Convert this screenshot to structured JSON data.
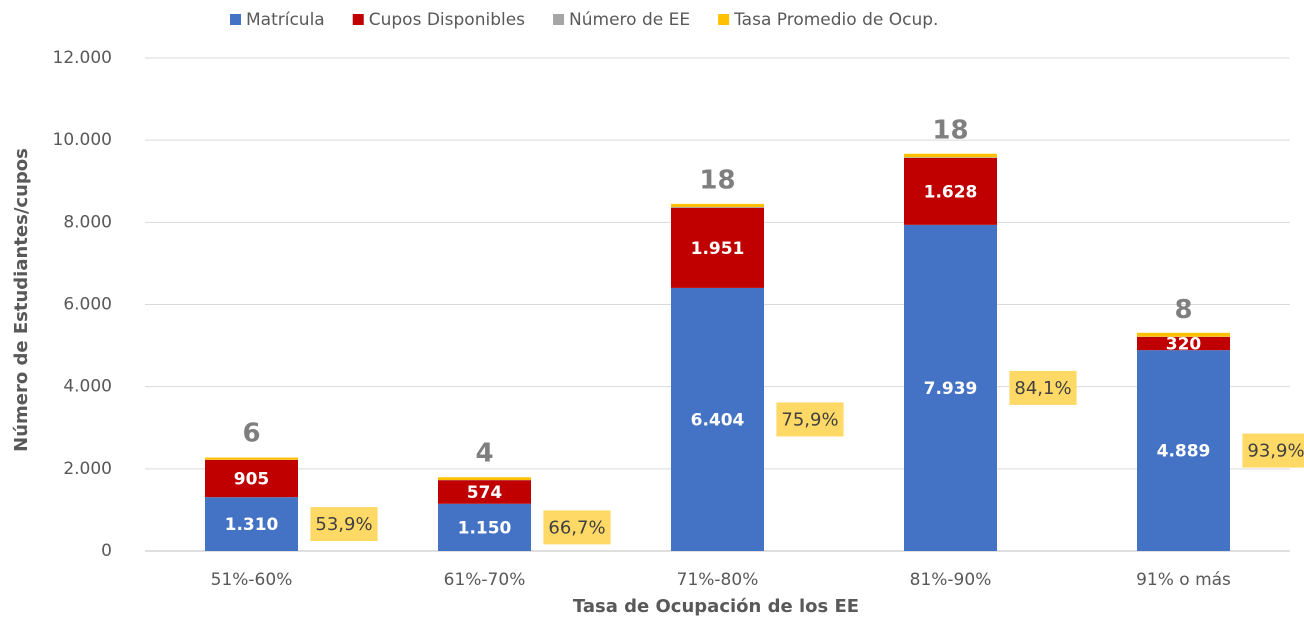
{
  "chart_data": {
    "type": "stacked_bar",
    "x_label": "Tasa de Ocupación de los EE",
    "y_label": "Número de Estudiantes/cupos",
    "categories": [
      "51%-60%",
      "61%-70%",
      "71%-80%",
      "81%-90%",
      "91% o más"
    ],
    "series": [
      {
        "name": "Matrícula",
        "color": "#4472c4",
        "values": [
          1310,
          1150,
          6404,
          7939,
          4889
        ],
        "value_labels": [
          "1.310",
          "1.150",
          "6.404",
          "7.939",
          "4.889"
        ]
      },
      {
        "name": "Cupos Disponibles",
        "color": "#c00000",
        "values": [
          905,
          574,
          1951,
          1628,
          320
        ],
        "value_labels": [
          "905",
          "574",
          "1.951",
          "1.628",
          "320"
        ]
      },
      {
        "name": "Número de EE",
        "color": "#a5a5a5",
        "values": [
          6,
          4,
          18,
          18,
          8
        ]
      },
      {
        "name": "Tasa Promedio de Ocup.",
        "color": "#ffc000",
        "values": [
          53.9,
          66.7,
          75.9,
          84.1,
          93.9
        ],
        "value_labels": [
          "53,9%",
          "66,7%",
          "75,9%",
          "84,1%",
          "93,9%"
        ]
      }
    ],
    "ylim": [
      0,
      12000
    ],
    "yticks": [
      0,
      {
        "value": 2000,
        "label": "2.000"
      },
      {
        "value": 4000,
        "label": "4.000"
      },
      {
        "value": 6000,
        "label": "6.000"
      },
      {
        "value": 8000,
        "label": "8.000"
      },
      {
        "value": 10000,
        "label": "10.000"
      },
      {
        "value": 12000,
        "label": "12.000"
      }
    ],
    "grid": true,
    "legend": "top"
  }
}
